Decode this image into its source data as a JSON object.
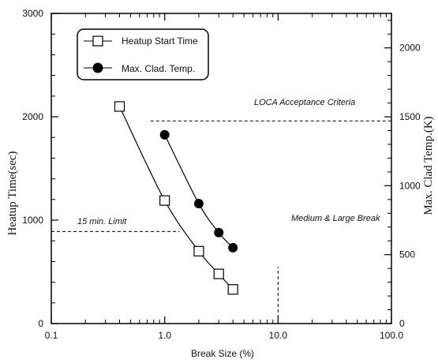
{
  "chart_data": {
    "type": "scatter",
    "x_scale": "log",
    "xlim": [
      0.1,
      100
    ],
    "x_ticks": [
      "0.1",
      "1.0",
      "10.0",
      "100.0"
    ],
    "xlabel": "Break Size (%)",
    "y_left": {
      "label": "Heatup Time(sec)",
      "lim": [
        0,
        3000
      ],
      "ticks": [
        "0",
        "1000",
        "2000",
        "3000"
      ]
    },
    "y_right": {
      "label": "Max. Clad Temp.(K)",
      "lim": [
        0,
        2250
      ],
      "ticks": [
        "0",
        "500",
        "1000",
        "1500",
        "2000"
      ]
    },
    "series": [
      {
        "name": "Heatup Start Time",
        "axis": "left",
        "marker": "open-square",
        "points": [
          {
            "x": 0.4,
            "y": 2100
          },
          {
            "x": 1.0,
            "y": 1190
          },
          {
            "x": 2.0,
            "y": 700
          },
          {
            "x": 3.0,
            "y": 480
          },
          {
            "x": 4.0,
            "y": 330
          }
        ]
      },
      {
        "name": "Max. Clad. Temp.",
        "axis": "right",
        "marker": "filled-circle",
        "points": [
          {
            "x": 1.0,
            "y": 1370
          },
          {
            "x": 2.0,
            "y": 870
          },
          {
            "x": 3.0,
            "y": 660
          },
          {
            "x": 4.0,
            "y": 550
          }
        ]
      }
    ],
    "reference_lines": [
      {
        "label": "LOCA Acceptance Criteria",
        "axis": "right",
        "y": 1470,
        "x_from": 0.75,
        "x_to": 100
      },
      {
        "label": "15 min. Limit",
        "axis": "left",
        "y": 890,
        "x_from": 0.1,
        "x_to": 1.35
      },
      {
        "label": "Medium & Large Break",
        "x": 10,
        "axis": "left",
        "y_from": 0,
        "y_to": 550
      }
    ],
    "legend": {
      "position": "top-left"
    },
    "grid": false
  }
}
